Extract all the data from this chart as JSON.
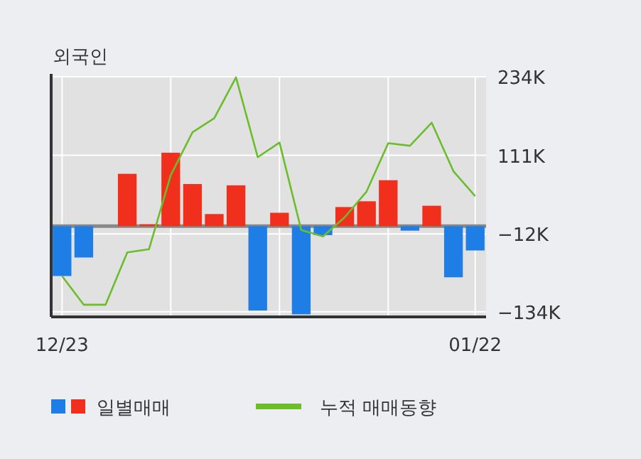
{
  "chart_data": {
    "type": "bar",
    "title": "외국인",
    "categories": [
      "12/23",
      null,
      null,
      null,
      null,
      null,
      null,
      null,
      null,
      null,
      null,
      null,
      null,
      null,
      null,
      null,
      null,
      null,
      null,
      "01/22"
    ],
    "series": [
      {
        "name": "일별매매",
        "colors": [
          "#1f7de6",
          "#1f7de6",
          "#1f7de6",
          "#f0301c",
          "#f0301c",
          "#f0301c",
          "#f0301c",
          "#f0301c",
          "#f0301c",
          "#1f7de6",
          "#f0301c",
          "#1f7de6",
          "#1f7de6",
          "#f0301c",
          "#f0301c",
          "#f0301c",
          "#1f7de6",
          "#f0301c",
          "#1f7de6",
          "#1f7de6"
        ],
        "values": [
          -78000,
          -49000,
          0,
          82000,
          3000,
          115000,
          66000,
          19000,
          64000,
          -132000,
          21000,
          -138000,
          -14000,
          30000,
          39000,
          72000,
          -7000,
          32000,
          -80000,
          -38000
        ]
      },
      {
        "name": "누적 매매동향",
        "type": "line",
        "color": "#6cbd2b",
        "values": [
          -78000,
          -123000,
          -123000,
          -41000,
          -36000,
          80000,
          147000,
          169000,
          233000,
          108000,
          131000,
          -6000,
          -16000,
          14000,
          54000,
          130000,
          126000,
          162000,
          86000,
          47000
        ]
      }
    ],
    "ylim": [
      -142000,
      234000
    ],
    "yticks": [
      {
        "value": 234000,
        "label": "234K"
      },
      {
        "value": 111000,
        "label": "111K"
      },
      {
        "value": -12000,
        "label": "−12K"
      },
      {
        "value": -134000,
        "label": "−134K"
      }
    ],
    "ref_lines": [
      {
        "axis": "y",
        "value": 0,
        "color": "#888888"
      }
    ],
    "grid": true,
    "legend": "bottom"
  }
}
